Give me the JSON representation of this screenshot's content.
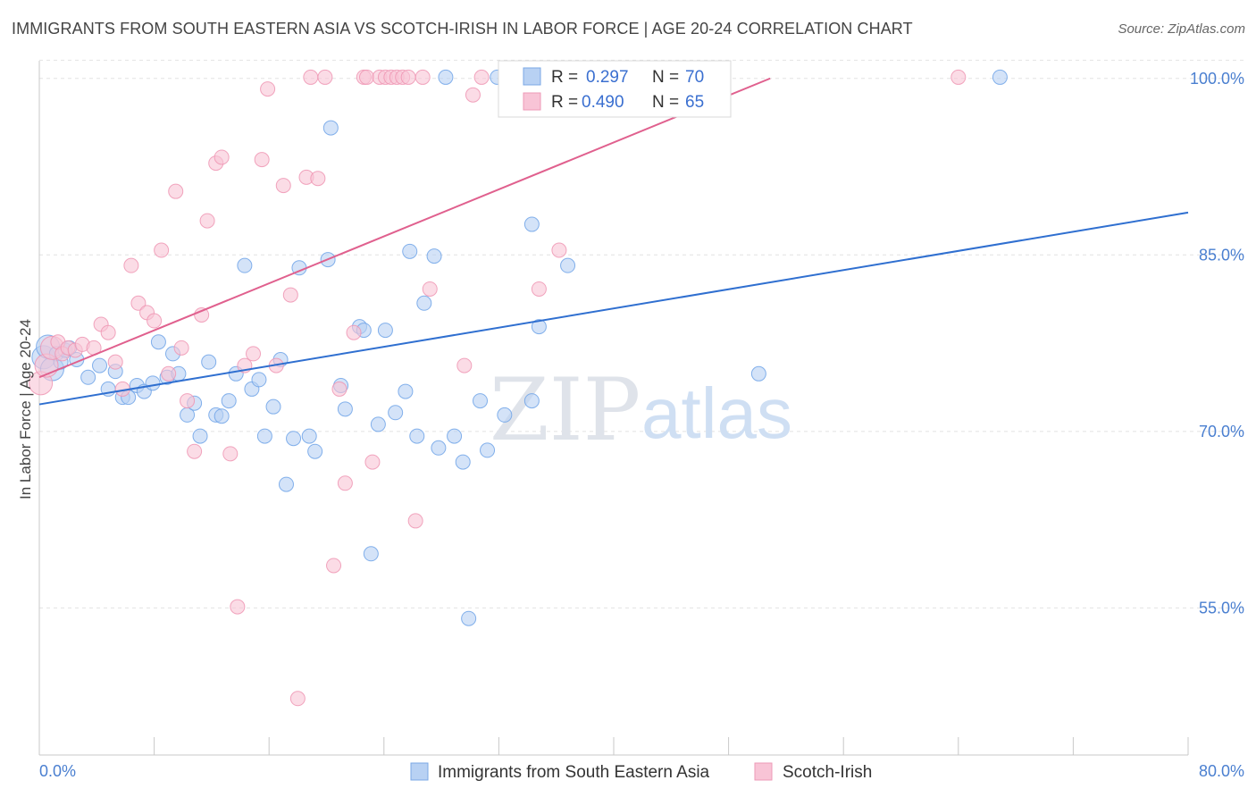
{
  "title": "IMMIGRANTS FROM SOUTH EASTERN ASIA VS SCOTCH-IRISH IN LABOR FORCE | AGE 20-24 CORRELATION CHART",
  "source": "Source: ZipAtlas.com",
  "watermark": {
    "zip": "ZIP",
    "atlas": "atlas"
  },
  "legend": {
    "rows": [
      {
        "r_label": "R =",
        "r_value": "0.297",
        "n_label": "N =",
        "n_value": "70"
      },
      {
        "r_label": "R =",
        "r_value": "0.490",
        "n_label": "N =",
        "n_value": "65"
      }
    ]
  },
  "chart_data": {
    "type": "scatter",
    "title": "IMMIGRANTS FROM SOUTH EASTERN ASIA VS SCOTCH-IRISH IN LABOR FORCE | AGE 20-24 CORRELATION CHART",
    "xlabel": "",
    "ylabel": "In Labor Force | Age 20-24",
    "xlim": [
      0,
      80
    ],
    "ylim": [
      42.5,
      101.5
    ],
    "x_tick_labels": [
      "0.0%",
      "80.0%"
    ],
    "y_ticks": [
      55,
      70,
      85,
      100
    ],
    "y_tick_labels": [
      "55.0%",
      "70.0%",
      "85.0%",
      "100.0%"
    ],
    "grid": true,
    "legend_position": "top-center",
    "series": [
      {
        "name": "Immigrants from South Eastern Asia",
        "color": "#6fa3e8",
        "fill": "#b8d1f3",
        "r": 0.297,
        "n": 70,
        "trend": {
          "x": [
            0,
            80
          ],
          "y": [
            72.3,
            88.6
          ]
        },
        "points": [
          [
            0.3,
            76.3
          ],
          [
            0.6,
            77.2
          ],
          [
            0.9,
            75.3
          ],
          [
            1.2,
            76.6
          ],
          [
            1.5,
            75.9
          ],
          [
            1.8,
            76.9
          ],
          [
            2.1,
            77.1
          ],
          [
            2.6,
            76.1
          ],
          [
            3.4,
            74.6
          ],
          [
            4.2,
            75.6
          ],
          [
            4.8,
            73.6
          ],
          [
            5.3,
            75.1
          ],
          [
            5.8,
            72.9
          ],
          [
            6.2,
            72.9
          ],
          [
            6.8,
            73.9
          ],
          [
            7.3,
            73.4
          ],
          [
            7.9,
            74.1
          ],
          [
            8.3,
            77.6
          ],
          [
            8.9,
            74.6
          ],
          [
            9.3,
            76.6
          ],
          [
            9.7,
            74.9
          ],
          [
            10.3,
            71.4
          ],
          [
            10.8,
            72.4
          ],
          [
            11.2,
            69.6
          ],
          [
            11.8,
            75.9
          ],
          [
            12.3,
            71.4
          ],
          [
            12.7,
            71.3
          ],
          [
            13.2,
            72.6
          ],
          [
            13.7,
            74.9
          ],
          [
            14.3,
            84.1
          ],
          [
            14.8,
            73.6
          ],
          [
            15.3,
            74.4
          ],
          [
            15.7,
            69.6
          ],
          [
            16.3,
            72.1
          ],
          [
            16.8,
            76.1
          ],
          [
            17.2,
            65.5
          ],
          [
            17.7,
            69.4
          ],
          [
            18.1,
            83.9
          ],
          [
            18.8,
            69.6
          ],
          [
            19.2,
            68.3
          ],
          [
            20.1,
            84.6
          ],
          [
            20.3,
            95.8
          ],
          [
            21.0,
            73.9
          ],
          [
            21.3,
            71.9
          ],
          [
            22.3,
            78.9
          ],
          [
            22.6,
            78.6
          ],
          [
            23.1,
            59.6
          ],
          [
            23.6,
            70.6
          ],
          [
            24.1,
            78.6
          ],
          [
            24.8,
            71.6
          ],
          [
            25.5,
            73.4
          ],
          [
            25.8,
            85.3
          ],
          [
            26.3,
            69.6
          ],
          [
            26.8,
            80.9
          ],
          [
            27.5,
            84.9
          ],
          [
            27.8,
            68.6
          ],
          [
            28.3,
            100.1
          ],
          [
            28.9,
            69.6
          ],
          [
            29.5,
            67.4
          ],
          [
            29.9,
            54.1
          ],
          [
            30.7,
            72.6
          ],
          [
            31.2,
            68.4
          ],
          [
            31.9,
            100.1
          ],
          [
            32.4,
            71.4
          ],
          [
            34.3,
            72.6
          ],
          [
            34.3,
            87.6
          ],
          [
            34.8,
            78.9
          ],
          [
            36.8,
            84.1
          ],
          [
            50.1,
            74.9
          ],
          [
            66.9,
            100.1
          ]
        ]
      },
      {
        "name": "Scotch-Irish",
        "color": "#ee95b3",
        "fill": "#f8c4d6",
        "r": 0.49,
        "n": 65,
        "trend": {
          "x": [
            0,
            50.9
          ],
          "y": [
            74.6,
            100.0
          ]
        },
        "points": [
          [
            0.1,
            74.1
          ],
          [
            0.5,
            75.6
          ],
          [
            0.9,
            77.1
          ],
          [
            1.3,
            77.6
          ],
          [
            1.6,
            76.6
          ],
          [
            2.0,
            77.1
          ],
          [
            2.5,
            76.9
          ],
          [
            3.0,
            77.4
          ],
          [
            3.8,
            77.1
          ],
          [
            4.3,
            79.1
          ],
          [
            4.8,
            78.4
          ],
          [
            5.3,
            75.9
          ],
          [
            5.8,
            73.6
          ],
          [
            6.4,
            84.1
          ],
          [
            6.9,
            80.9
          ],
          [
            7.5,
            80.1
          ],
          [
            8.0,
            79.4
          ],
          [
            8.5,
            85.4
          ],
          [
            9.0,
            74.9
          ],
          [
            9.5,
            90.4
          ],
          [
            9.9,
            77.1
          ],
          [
            10.3,
            72.6
          ],
          [
            10.8,
            68.3
          ],
          [
            11.3,
            79.9
          ],
          [
            11.7,
            87.9
          ],
          [
            12.3,
            92.8
          ],
          [
            12.7,
            93.3
          ],
          [
            13.3,
            68.1
          ],
          [
            13.8,
            55.1
          ],
          [
            14.3,
            75.6
          ],
          [
            14.9,
            76.6
          ],
          [
            15.5,
            93.1
          ],
          [
            15.9,
            99.1
          ],
          [
            16.5,
            75.6
          ],
          [
            17.0,
            90.9
          ],
          [
            17.5,
            81.6
          ],
          [
            18.0,
            47.3
          ],
          [
            18.6,
            91.6
          ],
          [
            18.9,
            100.1
          ],
          [
            19.4,
            91.5
          ],
          [
            19.9,
            100.1
          ],
          [
            20.5,
            58.6
          ],
          [
            20.9,
            73.6
          ],
          [
            21.3,
            65.6
          ],
          [
            21.9,
            78.4
          ],
          [
            22.6,
            100.1
          ],
          [
            22.8,
            100.1
          ],
          [
            23.2,
            67.4
          ],
          [
            23.7,
            100.1
          ],
          [
            24.1,
            100.1
          ],
          [
            24.5,
            100.1
          ],
          [
            24.9,
            100.1
          ],
          [
            25.3,
            100.1
          ],
          [
            25.7,
            100.1
          ],
          [
            26.2,
            62.4
          ],
          [
            26.7,
            100.1
          ],
          [
            27.2,
            82.1
          ],
          [
            29.6,
            75.6
          ],
          [
            30.2,
            98.6
          ],
          [
            30.8,
            100.1
          ],
          [
            34.8,
            82.1
          ],
          [
            36.2,
            85.4
          ],
          [
            37.3,
            100.1
          ],
          [
            37.7,
            100.1
          ],
          [
            64.0,
            100.1
          ]
        ]
      }
    ]
  }
}
